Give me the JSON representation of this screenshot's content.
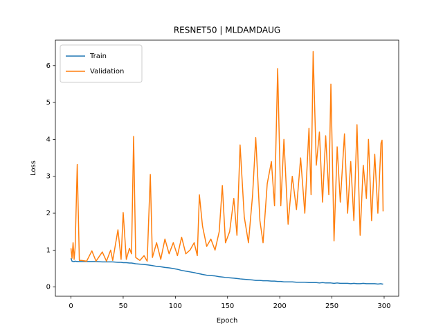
{
  "chart_data": {
    "type": "line",
    "title": "RESNET50 | MLDAMDAUG",
    "x_label": "Epoch",
    "y_label": "Loss",
    "x": [
      0,
      1,
      2,
      3,
      4,
      6,
      8,
      10,
      15,
      20,
      24,
      30,
      34,
      38,
      40,
      45,
      48,
      50,
      53,
      56,
      58,
      60,
      62,
      66,
      70,
      73,
      76,
      78,
      82,
      86,
      90,
      94,
      98,
      102,
      106,
      110,
      114,
      118,
      121,
      123,
      126,
      130,
      134,
      138,
      142,
      145,
      148,
      152,
      156,
      159,
      162,
      166,
      170,
      174,
      177,
      181,
      184,
      188,
      192,
      195,
      198,
      201,
      204,
      208,
      212,
      216,
      220,
      224,
      228,
      230,
      232,
      235,
      238,
      241,
      244,
      247,
      249,
      252,
      255,
      258,
      262,
      265,
      268,
      271,
      274,
      277,
      280,
      283,
      285,
      288,
      291,
      294,
      297,
      298,
      299
    ],
    "series": [
      {
        "name": "Train",
        "color": "#1f77b4",
        "values": [
          0.78,
          0.7,
          0.69,
          0.69,
          0.7,
          0.69,
          0.69,
          0.69,
          0.69,
          0.69,
          0.69,
          0.68,
          0.68,
          0.68,
          0.68,
          0.67,
          0.67,
          0.66,
          0.66,
          0.65,
          0.65,
          0.64,
          0.63,
          0.62,
          0.61,
          0.6,
          0.59,
          0.58,
          0.56,
          0.55,
          0.53,
          0.52,
          0.5,
          0.48,
          0.45,
          0.43,
          0.41,
          0.39,
          0.37,
          0.36,
          0.34,
          0.32,
          0.31,
          0.3,
          0.28,
          0.27,
          0.26,
          0.25,
          0.24,
          0.23,
          0.22,
          0.21,
          0.2,
          0.19,
          0.18,
          0.18,
          0.17,
          0.17,
          0.16,
          0.16,
          0.15,
          0.15,
          0.14,
          0.14,
          0.14,
          0.13,
          0.13,
          0.13,
          0.12,
          0.12,
          0.12,
          0.12,
          0.11,
          0.12,
          0.11,
          0.11,
          0.11,
          0.1,
          0.11,
          0.1,
          0.1,
          0.1,
          0.09,
          0.1,
          0.09,
          0.09,
          0.1,
          0.09,
          0.09,
          0.09,
          0.09,
          0.08,
          0.09,
          0.08,
          0.08
        ]
      },
      {
        "name": "Validation",
        "color": "#ff7f0e",
        "values": [
          1.05,
          0.78,
          1.2,
          0.75,
          1.08,
          3.32,
          0.72,
          0.72,
          0.7,
          0.98,
          0.7,
          0.95,
          0.7,
          1.0,
          0.72,
          1.55,
          0.75,
          2.02,
          0.75,
          1.05,
          0.9,
          4.08,
          0.8,
          0.72,
          0.85,
          0.7,
          3.05,
          0.8,
          1.2,
          0.75,
          1.3,
          0.9,
          1.2,
          0.85,
          1.35,
          0.9,
          1.0,
          1.2,
          0.85,
          2.5,
          1.65,
          1.1,
          1.3,
          1.0,
          1.5,
          2.75,
          1.2,
          1.5,
          2.4,
          1.4,
          3.85,
          1.9,
          1.2,
          2.5,
          4.05,
          1.8,
          1.2,
          2.8,
          3.4,
          2.2,
          5.92,
          2.2,
          4.0,
          1.7,
          3.0,
          2.1,
          3.5,
          2.0,
          4.3,
          2.5,
          6.38,
          3.3,
          4.2,
          2.3,
          4.1,
          2.5,
          5.5,
          1.25,
          3.8,
          2.3,
          4.15,
          2.0,
          3.4,
          1.8,
          4.4,
          1.4,
          3.3,
          2.4,
          4.0,
          1.8,
          3.6,
          2.0,
          3.9,
          3.98,
          2.05
        ]
      }
    ],
    "xlim": [
      -14.95,
      313.95
    ],
    "xticks": [
      0,
      50,
      100,
      150,
      200,
      250,
      300
    ],
    "ylim": [
      -0.25,
      6.69
    ],
    "yticks": [
      0,
      1,
      2,
      3,
      4,
      5,
      6
    ],
    "grid": false,
    "legend": "upper left"
  }
}
